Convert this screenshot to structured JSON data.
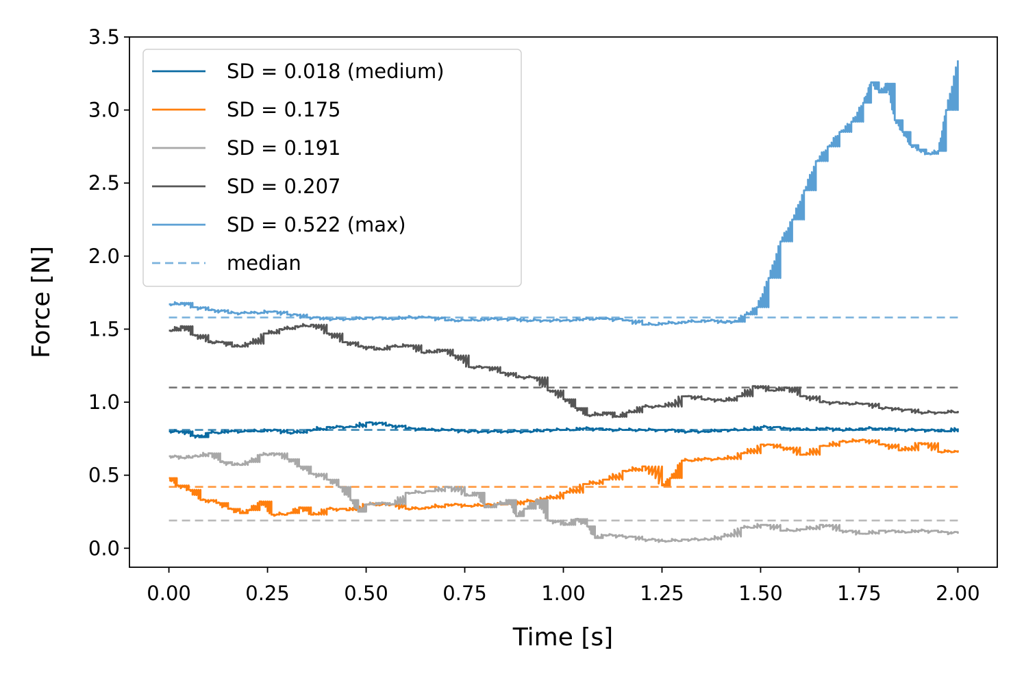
{
  "chart_data": {
    "type": "line",
    "title": "",
    "xlabel": "Time [s]",
    "ylabel": "Force [N]",
    "xlim": [
      -0.1,
      2.1
    ],
    "ylim": [
      -0.13,
      3.5
    ],
    "xticks": [
      "0.00",
      "0.25",
      "0.50",
      "0.75",
      "1.00",
      "1.25",
      "1.50",
      "1.75",
      "2.00"
    ],
    "xtick_values": [
      0,
      0.25,
      0.5,
      0.75,
      1.0,
      1.25,
      1.5,
      1.75,
      2.0
    ],
    "yticks": [
      "0.0",
      "0.5",
      "1.0",
      "1.5",
      "2.0",
      "2.5",
      "3.0",
      "3.5"
    ],
    "ytick_values": [
      0,
      0.5,
      1.0,
      1.5,
      2.0,
      2.5,
      3.0,
      3.5
    ],
    "legend_position": "top-left",
    "series": [
      {
        "name": "SD = 0.018 (medium)",
        "color": "#0a6aa1",
        "median": 0.81,
        "x": [
          0,
          0.03,
          0.06,
          0.08,
          0.1,
          0.15,
          0.2,
          0.25,
          0.3,
          0.35,
          0.4,
          0.45,
          0.5,
          0.55,
          0.6,
          0.65,
          0.7,
          0.75,
          0.8,
          0.85,
          0.9,
          0.95,
          1.0,
          1.05,
          1.1,
          1.15,
          1.2,
          1.25,
          1.3,
          1.35,
          1.4,
          1.45,
          1.5,
          1.55,
          1.6,
          1.65,
          1.7,
          1.75,
          1.8,
          1.85,
          1.9,
          1.95,
          2.0
        ],
        "y": [
          0.8,
          0.8,
          0.77,
          0.76,
          0.79,
          0.8,
          0.8,
          0.81,
          0.79,
          0.81,
          0.83,
          0.83,
          0.86,
          0.84,
          0.82,
          0.81,
          0.81,
          0.8,
          0.8,
          0.8,
          0.8,
          0.81,
          0.81,
          0.82,
          0.81,
          0.81,
          0.81,
          0.81,
          0.8,
          0.8,
          0.81,
          0.81,
          0.83,
          0.82,
          0.81,
          0.82,
          0.81,
          0.82,
          0.82,
          0.81,
          0.81,
          0.8,
          0.82
        ]
      },
      {
        "name": "SD = 0.175",
        "color": "#ff7f0e",
        "median": 0.42,
        "x": [
          0,
          0.02,
          0.05,
          0.08,
          0.12,
          0.15,
          0.18,
          0.2,
          0.23,
          0.26,
          0.3,
          0.33,
          0.36,
          0.4,
          0.45,
          0.5,
          0.55,
          0.6,
          0.65,
          0.7,
          0.75,
          0.8,
          0.85,
          0.9,
          0.95,
          1.0,
          1.05,
          1.1,
          1.15,
          1.2,
          1.25,
          1.27,
          1.3,
          1.35,
          1.4,
          1.45,
          1.5,
          1.55,
          1.6,
          1.65,
          1.7,
          1.75,
          1.8,
          1.85,
          1.9,
          1.95,
          2.0
        ],
        "y": [
          0.48,
          0.43,
          0.4,
          0.33,
          0.31,
          0.27,
          0.24,
          0.26,
          0.32,
          0.23,
          0.24,
          0.28,
          0.23,
          0.27,
          0.26,
          0.3,
          0.3,
          0.27,
          0.28,
          0.3,
          0.29,
          0.3,
          0.3,
          0.32,
          0.34,
          0.38,
          0.44,
          0.47,
          0.53,
          0.56,
          0.43,
          0.48,
          0.6,
          0.61,
          0.61,
          0.65,
          0.71,
          0.69,
          0.64,
          0.7,
          0.73,
          0.74,
          0.71,
          0.67,
          0.72,
          0.66,
          0.67
        ]
      },
      {
        "name": "SD = 0.191",
        "color": "#a8a8a8",
        "median": 0.19,
        "x": [
          0,
          0.03,
          0.06,
          0.1,
          0.13,
          0.16,
          0.2,
          0.23,
          0.26,
          0.3,
          0.33,
          0.36,
          0.4,
          0.43,
          0.46,
          0.48,
          0.5,
          0.53,
          0.56,
          0.6,
          0.65,
          0.7,
          0.75,
          0.78,
          0.8,
          0.83,
          0.86,
          0.88,
          0.9,
          0.93,
          0.96,
          1.0,
          1.03,
          1.06,
          1.08,
          1.1,
          1.15,
          1.2,
          1.25,
          1.3,
          1.35,
          1.4,
          1.45,
          1.5,
          1.55,
          1.6,
          1.65,
          1.7,
          1.75,
          1.8,
          1.85,
          1.9,
          1.95,
          2.0
        ],
        "y": [
          0.63,
          0.62,
          0.63,
          0.65,
          0.59,
          0.57,
          0.59,
          0.64,
          0.65,
          0.61,
          0.56,
          0.51,
          0.47,
          0.42,
          0.33,
          0.25,
          0.3,
          0.31,
          0.3,
          0.38,
          0.39,
          0.42,
          0.36,
          0.38,
          0.28,
          0.3,
          0.33,
          0.22,
          0.27,
          0.33,
          0.19,
          0.16,
          0.2,
          0.15,
          0.07,
          0.09,
          0.08,
          0.06,
          0.05,
          0.06,
          0.06,
          0.08,
          0.14,
          0.16,
          0.12,
          0.13,
          0.16,
          0.12,
          0.1,
          0.12,
          0.11,
          0.12,
          0.11,
          0.1
        ]
      },
      {
        "name": "SD = 0.207",
        "color": "#555555",
        "median": 1.1,
        "x": [
          0,
          0.03,
          0.06,
          0.1,
          0.13,
          0.16,
          0.2,
          0.24,
          0.28,
          0.32,
          0.36,
          0.4,
          0.44,
          0.48,
          0.52,
          0.56,
          0.6,
          0.64,
          0.68,
          0.72,
          0.76,
          0.8,
          0.84,
          0.88,
          0.92,
          0.96,
          1.0,
          1.03,
          1.06,
          1.1,
          1.13,
          1.16,
          1.2,
          1.25,
          1.3,
          1.35,
          1.4,
          1.44,
          1.48,
          1.52,
          1.56,
          1.6,
          1.65,
          1.7,
          1.75,
          1.8,
          1.85,
          1.9,
          1.95,
          2.0
        ],
        "y": [
          1.49,
          1.52,
          1.46,
          1.41,
          1.41,
          1.38,
          1.4,
          1.47,
          1.5,
          1.52,
          1.53,
          1.47,
          1.41,
          1.38,
          1.36,
          1.38,
          1.39,
          1.34,
          1.36,
          1.32,
          1.24,
          1.24,
          1.2,
          1.17,
          1.17,
          1.08,
          1.02,
          0.96,
          0.91,
          0.93,
          0.9,
          0.93,
          0.97,
          0.97,
          1.04,
          1.02,
          1.01,
          1.04,
          1.11,
          1.08,
          1.1,
          1.04,
          1.0,
          0.99,
          0.99,
          0.96,
          0.95,
          0.93,
          0.93,
          0.94
        ]
      },
      {
        "name": "SD = 0.522 (max)",
        "color": "#5a9fd4",
        "median": 1.58,
        "x": [
          0,
          0.03,
          0.06,
          0.1,
          0.15,
          0.2,
          0.25,
          0.3,
          0.35,
          0.4,
          0.45,
          0.5,
          0.55,
          0.6,
          0.65,
          0.7,
          0.75,
          0.8,
          0.85,
          0.9,
          0.95,
          1.0,
          1.05,
          1.1,
          1.15,
          1.2,
          1.25,
          1.3,
          1.35,
          1.4,
          1.43,
          1.46,
          1.49,
          1.52,
          1.55,
          1.58,
          1.61,
          1.64,
          1.67,
          1.7,
          1.73,
          1.76,
          1.78,
          1.8,
          1.82,
          1.84,
          1.86,
          1.88,
          1.9,
          1.92,
          1.95,
          1.97,
          2.0
        ],
        "y": [
          1.67,
          1.68,
          1.65,
          1.63,
          1.61,
          1.61,
          1.62,
          1.6,
          1.58,
          1.57,
          1.57,
          1.58,
          1.57,
          1.58,
          1.58,
          1.56,
          1.56,
          1.57,
          1.57,
          1.56,
          1.56,
          1.56,
          1.57,
          1.57,
          1.56,
          1.53,
          1.54,
          1.55,
          1.56,
          1.55,
          1.55,
          1.6,
          1.65,
          1.85,
          2.1,
          2.25,
          2.45,
          2.65,
          2.75,
          2.85,
          2.92,
          3.05,
          3.19,
          3.12,
          3.18,
          2.93,
          2.85,
          2.76,
          2.73,
          2.7,
          2.72,
          3.0,
          3.34
        ]
      }
    ],
    "legend_extra": {
      "label": "median",
      "style": "dashed"
    }
  }
}
